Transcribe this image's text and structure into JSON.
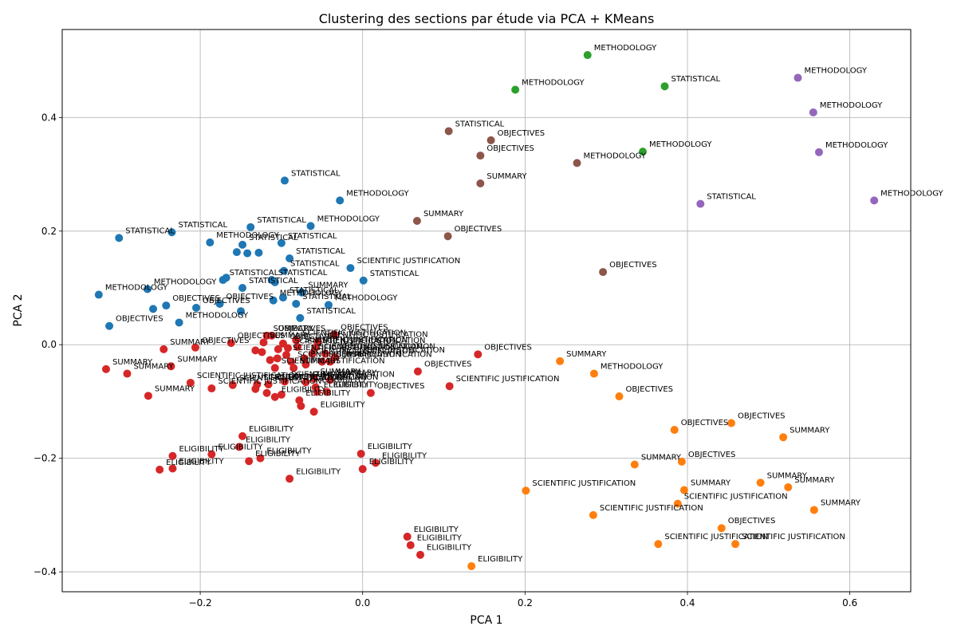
{
  "chart_data": {
    "type": "scatter",
    "title": "Clustering des sections par étude via PCA + KMeans",
    "xlabel": "PCA 1",
    "ylabel": "PCA 2",
    "xlim": [
      -0.37,
      0.675
    ],
    "ylim": [
      -0.435,
      0.555
    ],
    "xticks": [
      -0.2,
      0.0,
      0.2,
      0.4,
      0.6
    ],
    "yticks": [
      -0.4,
      -0.2,
      0.0,
      0.2,
      0.4
    ],
    "xtick_labels": [
      "−0.2",
      "0.0",
      "0.2",
      "0.4",
      "0.6"
    ],
    "ytick_labels": [
      "−0.4",
      "−0.2",
      "0.0",
      "0.2",
      "0.4"
    ],
    "grid": true,
    "legend": "none",
    "cluster_colors": [
      "#1f77b4",
      "#ff7f0e",
      "#2ca02c",
      "#d62728",
      "#9467bd",
      "#8c564b"
    ],
    "points": [
      {
        "x": -0.3,
        "y": 0.188,
        "c": 0,
        "label": "STATISTICAL"
      },
      {
        "x": -0.235,
        "y": 0.198,
        "c": 0,
        "label": "STATISTICAL"
      },
      {
        "x": -0.188,
        "y": 0.18,
        "c": 0,
        "label": "METHODOLOGY"
      },
      {
        "x": -0.096,
        "y": 0.289,
        "c": 0,
        "label": "STATISTICAL"
      },
      {
        "x": -0.028,
        "y": 0.254,
        "c": 0,
        "label": "METHODOLOGY"
      },
      {
        "x": -0.138,
        "y": 0.207,
        "c": 0,
        "label": "STATISTICAL"
      },
      {
        "x": -0.064,
        "y": 0.209,
        "c": 0,
        "label": "METHODOLOGY"
      },
      {
        "x": -0.148,
        "y": 0.176,
        "c": 0,
        "label": "STATISTICAL"
      },
      {
        "x": -0.1,
        "y": 0.179,
        "c": 0,
        "label": "STATISTICAL"
      },
      {
        "x": -0.155,
        "y": 0.163,
        "c": 0,
        "label": ""
      },
      {
        "x": -0.142,
        "y": 0.161,
        "c": 0,
        "label": ""
      },
      {
        "x": -0.128,
        "y": 0.162,
        "c": 0,
        "label": ""
      },
      {
        "x": -0.09,
        "y": 0.152,
        "c": 0,
        "label": "STATISTICAL"
      },
      {
        "x": -0.015,
        "y": 0.135,
        "c": 0,
        "label": "SCIENTIFIC JUSTIFICATION"
      },
      {
        "x": 0.001,
        "y": 0.113,
        "c": 0,
        "label": "STATISTICAL"
      },
      {
        "x": -0.097,
        "y": 0.13,
        "c": 0,
        "label": "STATISTICAL"
      },
      {
        "x": -0.112,
        "y": 0.114,
        "c": 0,
        "label": "STATISTICAL"
      },
      {
        "x": -0.172,
        "y": 0.114,
        "c": 0,
        "label": "STATISTICAL"
      },
      {
        "x": -0.168,
        "y": 0.118,
        "c": 0,
        "label": ""
      },
      {
        "x": -0.148,
        "y": 0.1,
        "c": 0,
        "label": "STATISTICAL"
      },
      {
        "x": -0.108,
        "y": 0.11,
        "c": 0,
        "label": ""
      },
      {
        "x": -0.075,
        "y": 0.092,
        "c": 0,
        "label": "SUMMARY"
      },
      {
        "x": -0.325,
        "y": 0.088,
        "c": 0,
        "label": "METHODOLOGY"
      },
      {
        "x": -0.265,
        "y": 0.098,
        "c": 0,
        "label": "METHODOLOGY"
      },
      {
        "x": -0.098,
        "y": 0.083,
        "c": 0,
        "label": "STATISTICAL"
      },
      {
        "x": -0.082,
        "y": 0.072,
        "c": 0,
        "label": "STATISTICAL"
      },
      {
        "x": -0.11,
        "y": 0.078,
        "c": 0,
        "label": "METHODOLOGY"
      },
      {
        "x": -0.042,
        "y": 0.07,
        "c": 0,
        "label": "METHODOLOGY"
      },
      {
        "x": -0.242,
        "y": 0.069,
        "c": 0,
        "label": "OBJECTIVES"
      },
      {
        "x": -0.205,
        "y": 0.065,
        "c": 0,
        "label": "OBJECTIVES"
      },
      {
        "x": -0.176,
        "y": 0.072,
        "c": 0,
        "label": "OBJECTIVES"
      },
      {
        "x": -0.258,
        "y": 0.063,
        "c": 0,
        "label": ""
      },
      {
        "x": -0.15,
        "y": 0.059,
        "c": 0,
        "label": ""
      },
      {
        "x": -0.226,
        "y": 0.039,
        "c": 0,
        "label": "METHODOLOGY"
      },
      {
        "x": -0.077,
        "y": 0.047,
        "c": 0,
        "label": "STATISTICAL"
      },
      {
        "x": -0.312,
        "y": 0.033,
        "c": 0,
        "label": "OBJECTIVES"
      },
      {
        "x": 0.243,
        "y": -0.029,
        "c": 1,
        "label": "SUMMARY"
      },
      {
        "x": 0.285,
        "y": -0.051,
        "c": 1,
        "label": "METHODOLOGY"
      },
      {
        "x": 0.316,
        "y": -0.091,
        "c": 1,
        "label": "OBJECTIVES"
      },
      {
        "x": 0.384,
        "y": -0.15,
        "c": 1,
        "label": "OBJECTIVES"
      },
      {
        "x": 0.454,
        "y": -0.138,
        "c": 1,
        "label": "OBJECTIVES"
      },
      {
        "x": 0.518,
        "y": -0.163,
        "c": 1,
        "label": "SUMMARY"
      },
      {
        "x": 0.335,
        "y": -0.211,
        "c": 1,
        "label": "SUMMARY"
      },
      {
        "x": 0.393,
        "y": -0.206,
        "c": 1,
        "label": "OBJECTIVES"
      },
      {
        "x": 0.201,
        "y": -0.257,
        "c": 1,
        "label": "SCIENTIFIC JUSTIFICATION"
      },
      {
        "x": 0.396,
        "y": -0.256,
        "c": 1,
        "label": "SUMMARY"
      },
      {
        "x": 0.49,
        "y": -0.243,
        "c": 1,
        "label": "SUMMARY"
      },
      {
        "x": 0.524,
        "y": -0.251,
        "c": 1,
        "label": "SUMMARY"
      },
      {
        "x": 0.388,
        "y": -0.28,
        "c": 1,
        "label": "SCIENTIFIC JUSTIFICATION"
      },
      {
        "x": 0.284,
        "y": -0.3,
        "c": 1,
        "label": "SCIENTIFIC JUSTIFICATION"
      },
      {
        "x": 0.556,
        "y": -0.291,
        "c": 1,
        "label": "SUMMARY"
      },
      {
        "x": 0.442,
        "y": -0.323,
        "c": 1,
        "label": "OBJECTIVES"
      },
      {
        "x": 0.364,
        "y": -0.351,
        "c": 1,
        "label": "SCIENTIFIC JUSTIFICATION"
      },
      {
        "x": 0.459,
        "y": -0.351,
        "c": 1,
        "label": "SCIENTIFIC JUSTIFICATION"
      },
      {
        "x": 0.134,
        "y": -0.39,
        "c": 1,
        "label": "ELIGIBILITY"
      },
      {
        "x": 0.277,
        "y": 0.51,
        "c": 2,
        "label": "METHODOLOGY"
      },
      {
        "x": 0.188,
        "y": 0.449,
        "c": 2,
        "label": "METHODOLOGY"
      },
      {
        "x": 0.372,
        "y": 0.455,
        "c": 2,
        "label": "STATISTICAL"
      },
      {
        "x": 0.345,
        "y": 0.34,
        "c": 2,
        "label": "METHODOLOGY"
      },
      {
        "x": 0.536,
        "y": 0.47,
        "c": 4,
        "label": "METHODOLOGY"
      },
      {
        "x": 0.555,
        "y": 0.409,
        "c": 4,
        "label": "METHODOLOGY"
      },
      {
        "x": 0.562,
        "y": 0.339,
        "c": 4,
        "label": "METHODOLOGY"
      },
      {
        "x": 0.416,
        "y": 0.248,
        "c": 4,
        "label": "STATISTICAL"
      },
      {
        "x": 0.63,
        "y": 0.254,
        "c": 4,
        "label": "METHODOLOGY"
      },
      {
        "x": 0.106,
        "y": 0.376,
        "c": 5,
        "label": "STATISTICAL"
      },
      {
        "x": 0.158,
        "y": 0.36,
        "c": 5,
        "label": "OBJECTIVES"
      },
      {
        "x": 0.145,
        "y": 0.333,
        "c": 5,
        "label": "OBJECTIVES"
      },
      {
        "x": 0.264,
        "y": 0.32,
        "c": 5,
        "label": "METHODOLOGY"
      },
      {
        "x": 0.145,
        "y": 0.284,
        "c": 5,
        "label": "SUMMARY"
      },
      {
        "x": 0.067,
        "y": 0.218,
        "c": 5,
        "label": "SUMMARY"
      },
      {
        "x": 0.105,
        "y": 0.191,
        "c": 5,
        "label": "OBJECTIVES"
      },
      {
        "x": 0.296,
        "y": 0.128,
        "c": 5,
        "label": "OBJECTIVES"
      },
      {
        "x": -0.035,
        "y": 0.018,
        "c": 3,
        "label": "OBJECTIVES"
      },
      {
        "x": -0.112,
        "y": 0.016,
        "c": 3,
        "label": "OBJECTIVES"
      },
      {
        "x": -0.118,
        "y": 0.016,
        "c": 3,
        "label": "SUMMARY"
      },
      {
        "x": -0.162,
        "y": 0.003,
        "c": 3,
        "label": "OBJECTIVES"
      },
      {
        "x": -0.122,
        "y": 0.004,
        "c": 3,
        "label": "SUMMARY"
      },
      {
        "x": -0.082,
        "y": 0.008,
        "c": 3,
        "label": "SCIENTIFIC JUSTIFICATION"
      },
      {
        "x": -0.098,
        "y": 0.002,
        "c": 3,
        "label": "OBJECTIVES"
      },
      {
        "x": -0.055,
        "y": 0.005,
        "c": 3,
        "label": "SCIENTIFIC JUSTIFICATION"
      },
      {
        "x": -0.08,
        "y": -0.004,
        "c": 3,
        "label": "SCIENTIFIC JUSTIFICATION"
      },
      {
        "x": -0.092,
        "y": -0.006,
        "c": 3,
        "label": "SCIENTIFIC JUSTIFICATION"
      },
      {
        "x": -0.058,
        "y": -0.005,
        "c": 3,
        "label": "SCIENTIFIC JUSTIFICATION"
      },
      {
        "x": -0.132,
        "y": -0.01,
        "c": 3,
        "label": ""
      },
      {
        "x": -0.124,
        "y": -0.013,
        "c": 3,
        "label": ""
      },
      {
        "x": -0.104,
        "y": -0.008,
        "c": 3,
        "label": ""
      },
      {
        "x": -0.094,
        "y": -0.018,
        "c": 3,
        "label": "SCIENTIFIC JUSTIFICATION"
      },
      {
        "x": -0.062,
        "y": -0.016,
        "c": 3,
        "label": "SCIENTIFIC JUSTIFICATION"
      },
      {
        "x": -0.046,
        "y": -0.016,
        "c": 3,
        "label": "SCIENTIFIC JUSTIFICATION"
      },
      {
        "x": -0.034,
        "y": -0.022,
        "c": 3,
        "label": "SCIENTIFIC JUSTIFICATION"
      },
      {
        "x": -0.114,
        "y": -0.027,
        "c": 3,
        "label": ""
      },
      {
        "x": -0.105,
        "y": -0.024,
        "c": 3,
        "label": ""
      },
      {
        "x": -0.088,
        "y": -0.03,
        "c": 3,
        "label": "SCIENTIFIC JUSTIFICATION"
      },
      {
        "x": -0.072,
        "y": -0.024,
        "c": 3,
        "label": "SCIENTIFIC JUSTIFICATION"
      },
      {
        "x": -0.05,
        "y": -0.03,
        "c": 3,
        "label": "SCIENTIFIC JUSTIFICATION"
      },
      {
        "x": -0.04,
        "y": -0.03,
        "c": 3,
        "label": "SUMMARY"
      },
      {
        "x": -0.108,
        "y": -0.041,
        "c": 3,
        "label": "SCIENTIFIC JUSTIFICATION"
      },
      {
        "x": -0.085,
        "y": -0.041,
        "c": 3,
        "label": "SUMMARY"
      },
      {
        "x": -0.07,
        "y": -0.035,
        "c": 3,
        "label": ""
      },
      {
        "x": 0.142,
        "y": -0.017,
        "c": 3,
        "label": "OBJECTIVES"
      },
      {
        "x": -0.316,
        "y": -0.043,
        "c": 3,
        "label": "SUMMARY"
      },
      {
        "x": -0.236,
        "y": -0.038,
        "c": 3,
        "label": "SUMMARY"
      },
      {
        "x": -0.29,
        "y": -0.051,
        "c": 3,
        "label": "SUMMARY"
      },
      {
        "x": -0.245,
        "y": -0.008,
        "c": 3,
        "label": "SUMMARY"
      },
      {
        "x": -0.206,
        "y": -0.005,
        "c": 3,
        "label": "OBJECTIVES"
      },
      {
        "x": 0.068,
        "y": -0.047,
        "c": 3,
        "label": "OBJECTIVES"
      },
      {
        "x": -0.06,
        "y": -0.06,
        "c": 3,
        "label": "SUMMARY"
      },
      {
        "x": -0.04,
        "y": -0.062,
        "c": 3,
        "label": "SUMMARY"
      },
      {
        "x": -0.212,
        "y": -0.067,
        "c": 3,
        "label": "SCIENTIFIC JUSTIFICATION"
      },
      {
        "x": -0.16,
        "y": -0.071,
        "c": 3,
        "label": "SCIENTIFIC JUSTIFICATION"
      },
      {
        "x": -0.13,
        "y": -0.07,
        "c": 3,
        "label": "SCIENTIFIC JUSTIFICATION"
      },
      {
        "x": -0.116,
        "y": -0.07,
        "c": 3,
        "label": "SCIENTIFIC JUSTIFICATION"
      },
      {
        "x": -0.096,
        "y": -0.065,
        "c": 3,
        "label": "SCIENTIFIC JUSTIFICATION"
      },
      {
        "x": -0.07,
        "y": -0.066,
        "c": 3,
        "label": "SUMMARY"
      },
      {
        "x": -0.186,
        "y": -0.077,
        "c": 3,
        "label": "SCIENTIFIC JUSTIFICATION"
      },
      {
        "x": -0.132,
        "y": -0.078,
        "c": 3,
        "label": ""
      },
      {
        "x": -0.058,
        "y": -0.075,
        "c": 3,
        "label": "ELIGIBILITY"
      },
      {
        "x": 0.107,
        "y": -0.073,
        "c": 3,
        "label": "SCIENTIFIC JUSTIFICATION"
      },
      {
        "x": -0.264,
        "y": -0.09,
        "c": 3,
        "label": "SUMMARY"
      },
      {
        "x": -0.118,
        "y": -0.085,
        "c": 3,
        "label": ""
      },
      {
        "x": -0.1,
        "y": -0.088,
        "c": 3,
        "label": ""
      },
      {
        "x": -0.108,
        "y": -0.092,
        "c": 3,
        "label": "ELIGIBILITY"
      },
      {
        "x": -0.056,
        "y": -0.083,
        "c": 3,
        "label": "ELIGIBILITY"
      },
      {
        "x": -0.044,
        "y": -0.083,
        "c": 3,
        "label": "ELIGIBILITY"
      },
      {
        "x": 0.01,
        "y": -0.085,
        "c": 3,
        "label": "OBJECTIVES"
      },
      {
        "x": -0.078,
        "y": -0.098,
        "c": 3,
        "label": "ELIGIBILITY"
      },
      {
        "x": -0.076,
        "y": -0.108,
        "c": 3,
        "label": ""
      },
      {
        "x": -0.06,
        "y": -0.118,
        "c": 3,
        "label": "ELIGIBILITY"
      },
      {
        "x": -0.148,
        "y": -0.161,
        "c": 3,
        "label": "ELIGIBILITY"
      },
      {
        "x": -0.152,
        "y": -0.18,
        "c": 3,
        "label": "ELIGIBILITY"
      },
      {
        "x": -0.234,
        "y": -0.196,
        "c": 3,
        "label": "ELIGIBILITY"
      },
      {
        "x": -0.186,
        "y": -0.193,
        "c": 3,
        "label": "ELIGIBILITY"
      },
      {
        "x": -0.126,
        "y": -0.2,
        "c": 3,
        "label": "ELIGIBILITY"
      },
      {
        "x": -0.14,
        "y": -0.205,
        "c": 3,
        "label": "ELIGIBILITY"
      },
      {
        "x": -0.002,
        "y": -0.192,
        "c": 3,
        "label": "ELIGIBILITY"
      },
      {
        "x": 0.016,
        "y": -0.208,
        "c": 3,
        "label": "ELIGIBILITY"
      },
      {
        "x": -0.25,
        "y": -0.22,
        "c": 3,
        "label": "ELIGIBILITY"
      },
      {
        "x": -0.234,
        "y": -0.218,
        "c": 3,
        "label": "ELIGIBILITY"
      },
      {
        "x": 0.0,
        "y": -0.219,
        "c": 3,
        "label": "ELIGIBILITY"
      },
      {
        "x": -0.09,
        "y": -0.236,
        "c": 3,
        "label": "ELIGIBILITY"
      },
      {
        "x": 0.055,
        "y": -0.338,
        "c": 3,
        "label": "ELIGIBILITY"
      },
      {
        "x": 0.059,
        "y": -0.353,
        "c": 3,
        "label": "ELIGIBILITY"
      },
      {
        "x": 0.071,
        "y": -0.37,
        "c": 3,
        "label": "ELIGIBILITY"
      }
    ]
  }
}
